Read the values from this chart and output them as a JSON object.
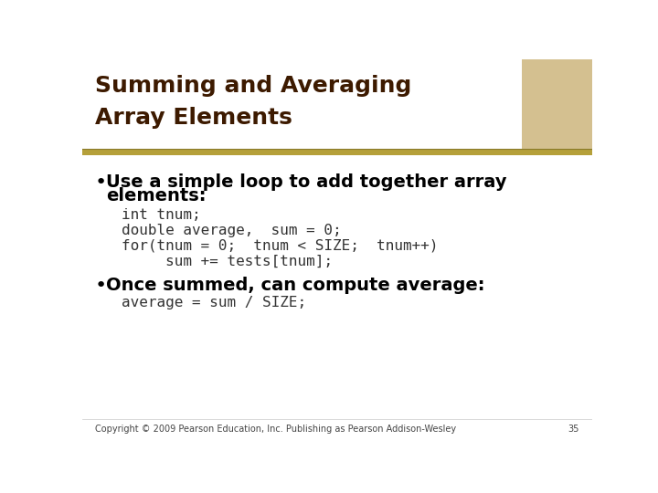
{
  "title_line1": "Summing and Averaging",
  "title_line2": "Array Elements",
  "title_color": "#3d1a00",
  "title_fontsize": 18,
  "bg_color": "#ffffff",
  "header_bg_color": "#ffffff",
  "divider_color": "#b5a03a",
  "bullet1_line1": "Use a simple loop to add together array",
  "bullet1_line2": "elements:",
  "code1_lines": [
    "int tnum;",
    "double average,  sum = 0;",
    "for(tnum = 0;  tnum < SIZE;  tnum++)",
    "     sum += tests[tnum];"
  ],
  "bullet2": "Once summed, can compute average:",
  "code2": "average = sum / SIZE;",
  "bullet_fontsize": 14,
  "code_fontsize": 11.5,
  "code_color": "#333333",
  "bullet_color": "#000000",
  "footer_text": "Copyright © 2009 Pearson Education, Inc. Publishing as Pearson Addison-Wesley",
  "footer_page": "35",
  "footer_fontsize": 7
}
